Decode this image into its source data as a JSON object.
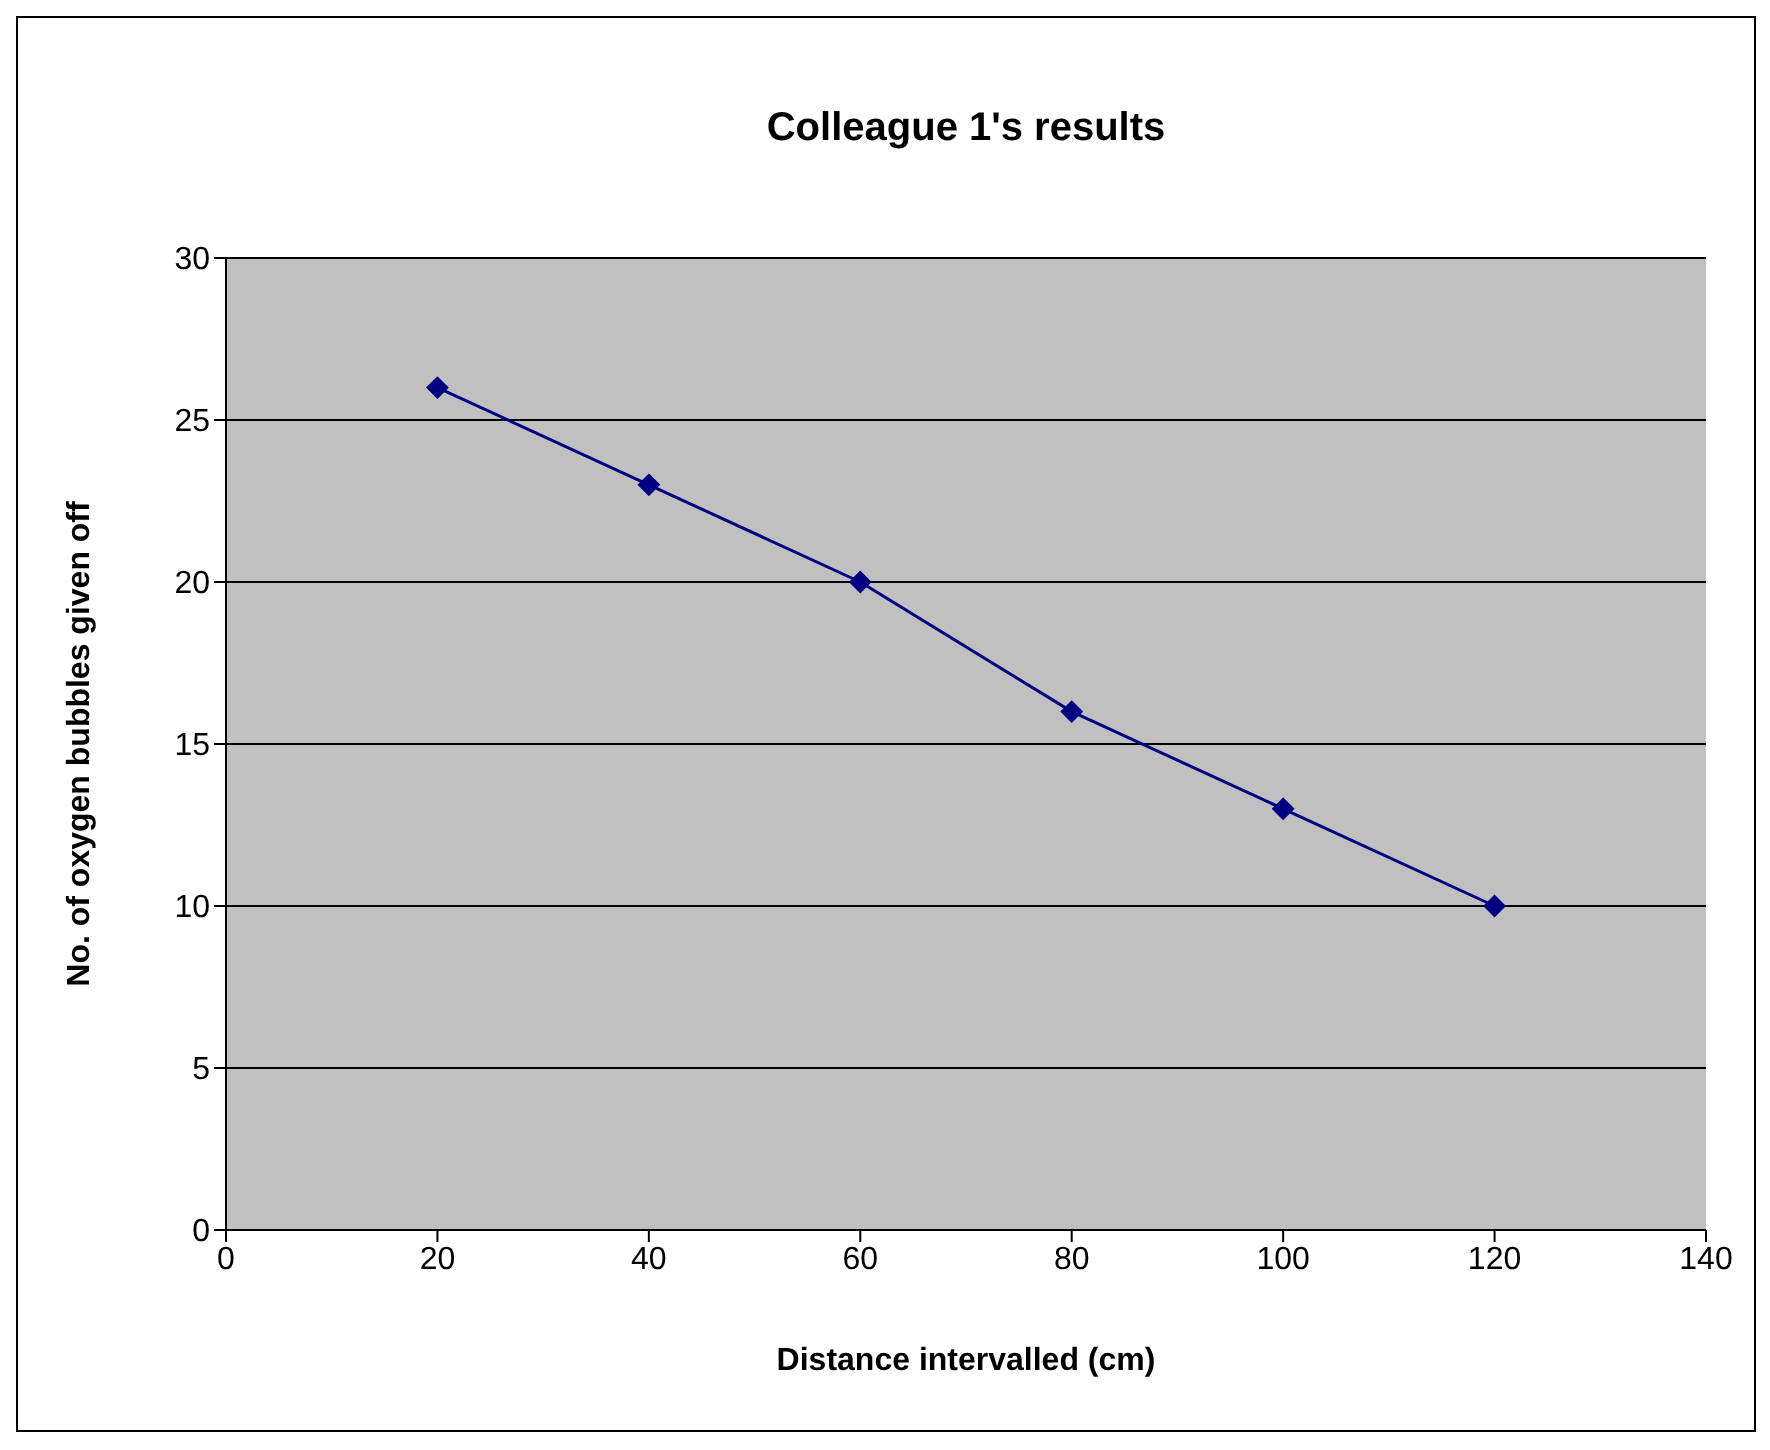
{
  "chart_data": {
    "type": "line",
    "title": "Colleague 1's results",
    "xlabel": "Distance intervalled (cm)",
    "ylabel": "No. of oxygen bubbles given off",
    "x": [
      20,
      40,
      60,
      80,
      100,
      120
    ],
    "series": [
      {
        "color": "#000080",
        "values": [
          26,
          23,
          20,
          16,
          13,
          10
        ]
      }
    ],
    "xlim": [
      0,
      140
    ],
    "xticks": [
      0,
      20,
      40,
      60,
      80,
      100,
      120,
      140
    ],
    "ylim": [
      0,
      30
    ],
    "yticks": [
      0,
      5,
      10,
      15,
      20,
      25,
      30
    ],
    "grid": "y",
    "marker": "diamond",
    "line_style": "solid"
  }
}
